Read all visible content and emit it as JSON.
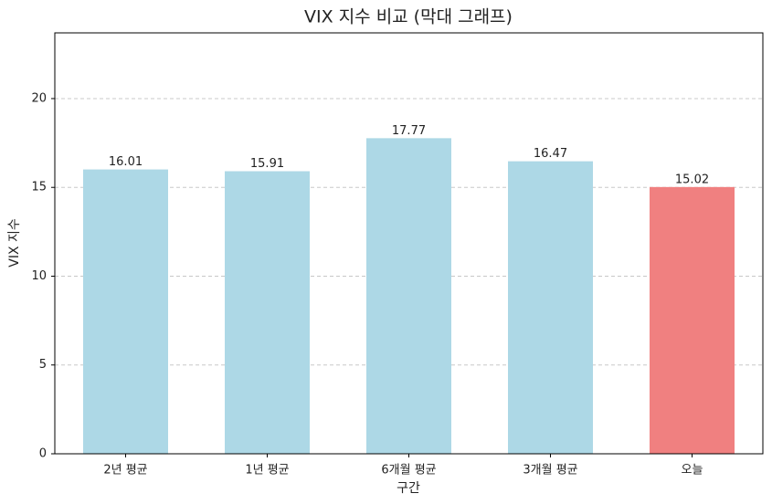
{
  "chart_data": {
    "type": "bar",
    "title": "VIX 지수 비교 (막대 그래프)",
    "xlabel": "구간",
    "ylabel": "VIX 지수",
    "categories": [
      "2년 평균",
      "1년 평균",
      "6개월 평균",
      "3개월 평균",
      "오늘"
    ],
    "values": [
      16.01,
      15.91,
      17.77,
      16.47,
      15.02
    ],
    "colors": [
      "#add8e6",
      "#add8e6",
      "#add8e6",
      "#add8e6",
      "#f08080"
    ],
    "ylim": [
      0,
      23.7
    ],
    "yticks": [
      0,
      5,
      10,
      15,
      20
    ],
    "grid": true
  }
}
